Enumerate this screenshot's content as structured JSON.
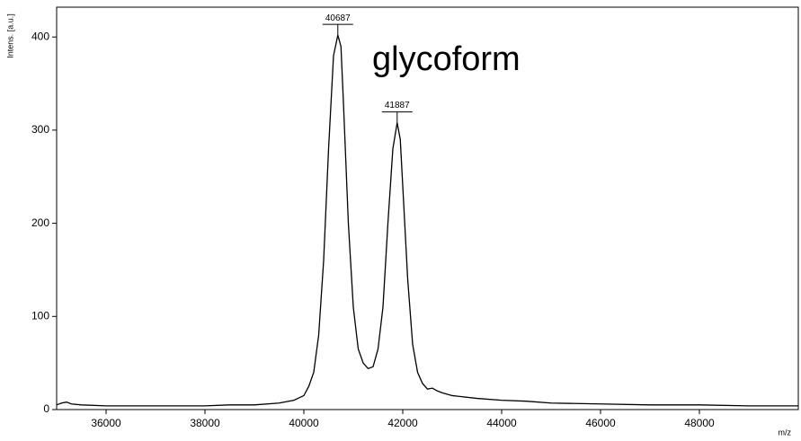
{
  "chart_data": {
    "type": "line",
    "annotation": "glycoform",
    "ylabel": "Intens. [a.u.]",
    "xlabel": "m/z",
    "color": "#000000",
    "xlim": [
      35000,
      50000
    ],
    "ylim": [
      0,
      432
    ],
    "xticks": [
      36000,
      38000,
      40000,
      42000,
      44000,
      46000,
      48000
    ],
    "yticks": [
      0,
      100,
      200,
      300,
      400
    ],
    "peaks": [
      {
        "x": 40687,
        "y": 402
      },
      {
        "x": 41887,
        "y": 308
      }
    ],
    "x": [
      35000,
      35100,
      35200,
      35300,
      35500,
      36000,
      36500,
      37000,
      37500,
      38000,
      38500,
      39000,
      39500,
      39800,
      40000,
      40100,
      40200,
      40300,
      40400,
      40500,
      40600,
      40687,
      40750,
      40800,
      40900,
      41000,
      41100,
      41200,
      41300,
      41400,
      41500,
      41600,
      41700,
      41800,
      41887,
      41950,
      42000,
      42100,
      42200,
      42300,
      42400,
      42500,
      42600,
      42700,
      42800,
      43000,
      43500,
      44000,
      44500,
      45000,
      46000,
      47000,
      48000,
      49000,
      50000
    ],
    "y": [
      5,
      7,
      8,
      6,
      5,
      4,
      4,
      4,
      4,
      4,
      5,
      5,
      7,
      10,
      15,
      25,
      40,
      80,
      160,
      280,
      380,
      402,
      390,
      330,
      200,
      110,
      65,
      50,
      44,
      46,
      65,
      110,
      200,
      280,
      308,
      290,
      240,
      140,
      70,
      40,
      28,
      22,
      23,
      20,
      18,
      15,
      12,
      10,
      9,
      7,
      6,
      5,
      5,
      4,
      4
    ]
  }
}
